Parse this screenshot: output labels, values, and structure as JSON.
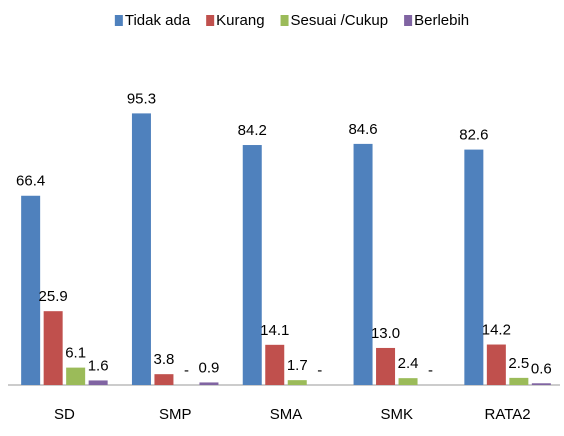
{
  "chart_data": {
    "type": "bar",
    "categories": [
      "SD",
      "SMP",
      "SMA",
      "SMK",
      "RATA2"
    ],
    "series": [
      {
        "name": "Tidak ada",
        "color": "#4f81bd",
        "values": [
          66.4,
          95.3,
          84.2,
          84.6,
          82.6
        ],
        "value_labels": [
          "66.4",
          "95.3",
          "84.2",
          "84.6",
          "82.6"
        ]
      },
      {
        "name": "Kurang",
        "color": "#c0504d",
        "values": [
          25.9,
          3.8,
          14.1,
          13.0,
          14.2
        ],
        "value_labels": [
          "25.9",
          "3.8",
          "14.1",
          "13.0",
          "14.2"
        ]
      },
      {
        "name": "Sesuai /Cukup",
        "color": "#9bbb59",
        "values": [
          6.1,
          0,
          1.7,
          2.4,
          2.5
        ],
        "value_labels": [
          "6.1",
          "-",
          "1.7",
          "2.4",
          "2.5"
        ]
      },
      {
        "name": "Berlebih",
        "color": "#8064a2",
        "values": [
          1.6,
          0.9,
          0,
          0,
          0.6
        ],
        "value_labels": [
          "1.6",
          "0.9",
          "-",
          "-",
          "0.6"
        ]
      }
    ],
    "ylim": [
      0,
      100
    ],
    "legend": "top"
  }
}
